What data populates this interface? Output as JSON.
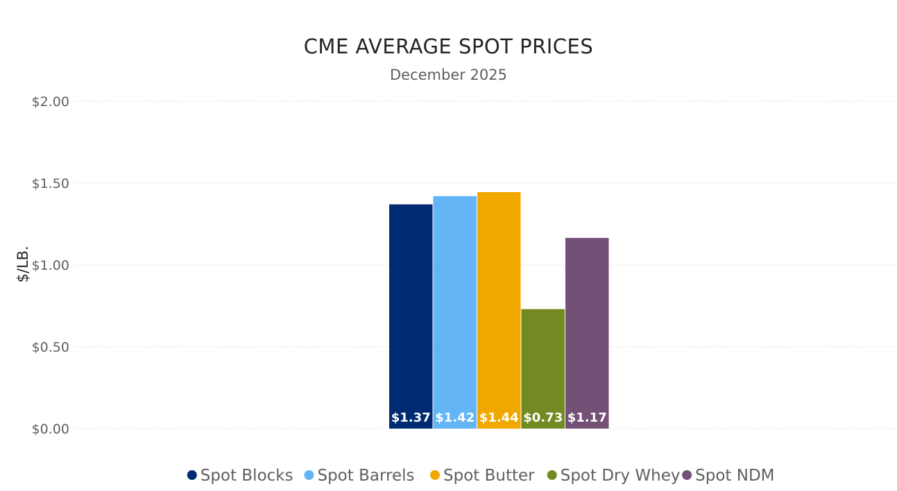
{
  "chart_data": {
    "type": "bar",
    "title": "CME AVERAGE SPOT PRICES",
    "subtitle": "December 2025",
    "xlabel": "",
    "ylabel": "$/LB.",
    "ylim": [
      0,
      2.0
    ],
    "y_ticks": [
      0,
      0.5,
      1.0,
      1.5,
      2.0
    ],
    "y_tick_labels": [
      "$0.00",
      "$0.50",
      "$1.00",
      "$1.50",
      "$2.00"
    ],
    "grid": true,
    "legend_position": "bottom",
    "series": [
      {
        "name": "Spot Blocks",
        "value": 1.37,
        "label": "$1.37",
        "color": "#002a72"
      },
      {
        "name": "Spot Barrels",
        "value": 1.42,
        "label": "$1.42",
        "color": "#63b5f5"
      },
      {
        "name": "Spot Butter",
        "value": 1.445,
        "label": "$1.44",
        "color": "#f0a800"
      },
      {
        "name": "Spot Dry Whey",
        "value": 0.73,
        "label": "$0.73",
        "color": "#738a22"
      },
      {
        "name": "Spot NDM",
        "value": 1.165,
        "label": "$1.17",
        "color": "#735075"
      }
    ]
  }
}
